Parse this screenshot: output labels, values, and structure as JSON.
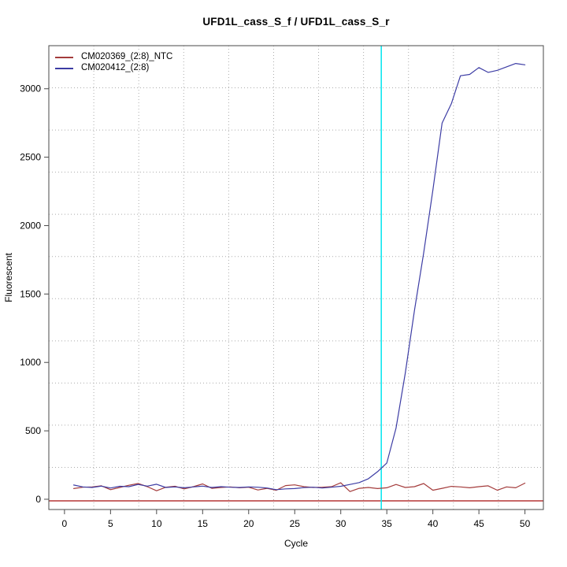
{
  "figure": {
    "background": "#FFFFFF"
  },
  "chart_data": {
    "type": "line",
    "title": "UFD1L_cass_S_f / UFD1L_cass_S_r",
    "xlabel": "Cycle",
    "ylabel": "Fluorescent",
    "x_ticks": [
      0,
      5,
      10,
      15,
      20,
      25,
      30,
      35,
      40,
      45,
      50
    ],
    "y_ticks": [
      0,
      500,
      1000,
      1500,
      2000,
      2500,
      3000
    ],
    "xlim": [
      -1.7,
      52.0
    ],
    "ylim": [
      -75,
      3315
    ],
    "grid": "dotted, 11x11 divisions of plot box",
    "legend_position": "top-left",
    "x": [
      1,
      2,
      3,
      4,
      5,
      6,
      7,
      8,
      9,
      10,
      11,
      12,
      13,
      14,
      15,
      16,
      17,
      18,
      19,
      20,
      21,
      22,
      23,
      24,
      25,
      26,
      27,
      28,
      29,
      30,
      31,
      32,
      33,
      34,
      35,
      36,
      37,
      38,
      39,
      40,
      41,
      42,
      43,
      44,
      45,
      46,
      47,
      48,
      49,
      50
    ],
    "series": [
      {
        "name": "CM020369_(2:8)_NTC",
        "color": "#A43C3C",
        "values": [
          78,
          88,
          90,
          98,
          70,
          86,
          102,
          115,
          92,
          62,
          88,
          95,
          76,
          92,
          112,
          80,
          86,
          90,
          84,
          88,
          68,
          80,
          66,
          100,
          105,
          92,
          86,
          88,
          92,
          120,
          56,
          80,
          86,
          78,
          84,
          108,
          86,
          92,
          115,
          66,
          80,
          94,
          90,
          84,
          92,
          98,
          66,
          90,
          84,
          118
        ]
      },
      {
        "name": "CM020412_(2:8)",
        "color": "#3C3CA4",
        "values": [
          104,
          90,
          86,
          96,
          82,
          95,
          92,
          108,
          96,
          110,
          86,
          90,
          84,
          90,
          96,
          86,
          92,
          88,
          86,
          90,
          88,
          82,
          70,
          76,
          78,
          85,
          88,
          82,
          88,
          95,
          108,
          122,
          150,
          202,
          265,
          520,
          920,
          1380,
          1800,
          2260,
          2750,
          2890,
          3095,
          3105,
          3155,
          3120,
          3135,
          3160,
          3185,
          3175
        ]
      }
    ],
    "threshold_line": {
      "value": 0,
      "color": "#C86868"
    },
    "ct_marker_line": {
      "cycle": 34.4,
      "color": "#00E5EE"
    },
    "colors": {
      "grid": "#ABABAB",
      "box": "#4A4A4A",
      "text": "#000000"
    }
  }
}
